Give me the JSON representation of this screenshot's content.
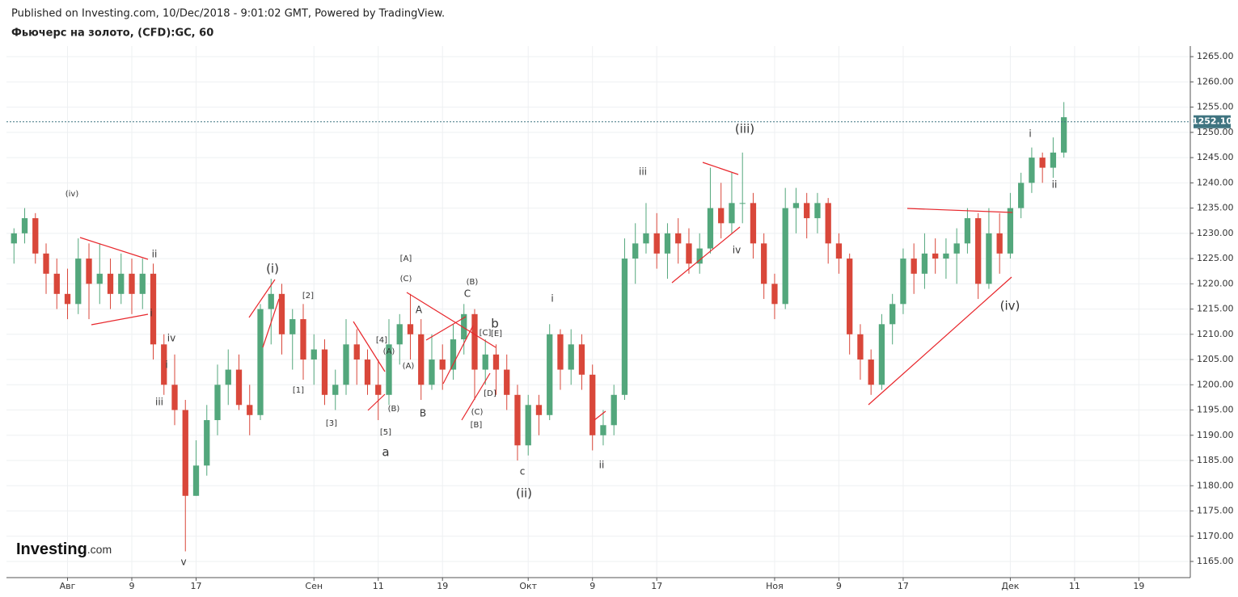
{
  "header": {
    "published": "Published on Investing.com, 10/Dec/2018 - 9:01:02 GMT, Powered by TradingView.",
    "instrument": "Фьючерс на золото, (CFD):GC, 60"
  },
  "logo": {
    "name": "Investing",
    "suffix": ".com"
  },
  "chart_data": {
    "type": "candlestick",
    "x": [
      -5,
      -4,
      -3,
      -2,
      -1,
      0,
      1,
      2,
      3,
      4,
      5,
      6,
      7,
      8,
      9,
      10,
      11,
      12,
      13,
      14,
      15,
      16,
      17,
      18,
      19,
      20,
      21,
      22,
      23,
      24,
      25,
      26,
      27,
      28,
      29,
      30,
      31,
      32,
      33,
      34,
      35,
      36,
      37,
      38,
      39,
      40,
      41,
      42,
      43,
      44,
      45,
      46,
      47,
      48,
      49,
      50,
      51,
      52,
      53,
      54,
      55,
      56,
      57,
      58,
      59,
      60,
      61,
      62,
      63,
      64,
      65,
      66,
      67,
      68,
      69,
      70,
      71,
      72,
      73,
      74,
      75,
      76,
      77,
      78,
      79,
      80,
      81,
      82,
      83,
      84,
      85,
      86,
      87,
      88,
      89,
      90,
      91,
      92,
      93
    ],
    "open": [
      1228,
      1230,
      1233,
      1226,
      1222,
      1218,
      1216,
      1225,
      1220,
      1222,
      1218,
      1222,
      1218,
      1222,
      1208,
      1200,
      1195,
      1178,
      1184,
      1193,
      1200,
      1203,
      1196,
      1194,
      1215,
      1218,
      1210,
      1213,
      1205,
      1207,
      1198,
      1200,
      1208,
      1205,
      1200,
      1198,
      1208,
      1212,
      1210,
      1200,
      1205,
      1203,
      1209,
      1214,
      1203,
      1206,
      1203,
      1198,
      1188,
      1196,
      1194,
      1210,
      1203,
      1208,
      1202,
      1190,
      1192,
      1198,
      1225,
      1228,
      1230,
      1226,
      1230,
      1228,
      1224,
      1227,
      1235,
      1232,
      1236,
      1236,
      1228,
      1220,
      1216,
      1235,
      1236,
      1233,
      1236,
      1228,
      1225,
      1210,
      1205,
      1200,
      1212,
      1216,
      1225,
      1222,
      1226,
      1225,
      1226,
      1228,
      1233,
      1220,
      1230,
      1226,
      1235,
      1240,
      1245,
      1243,
      1246
    ],
    "high": [
      1231,
      1235,
      1234,
      1228,
      1225,
      1223,
      1229,
      1228,
      1228,
      1225,
      1226,
      1225,
      1225,
      1224,
      1210,
      1206,
      1197,
      1189,
      1196,
      1204,
      1207,
      1206,
      1200,
      1216,
      1221,
      1220,
      1215,
      1216,
      1210,
      1209,
      1203,
      1213,
      1211,
      1207,
      1205,
      1213,
      1214,
      1218,
      1213,
      1210,
      1208,
      1212,
      1216,
      1215,
      1209,
      1208,
      1206,
      1200,
      1198,
      1198,
      1212,
      1211,
      1211,
      1210,
      1204,
      1195,
      1200,
      1229,
      1232,
      1236,
      1234,
      1232,
      1233,
      1231,
      1230,
      1243,
      1240,
      1242,
      1246,
      1238,
      1230,
      1222,
      1239,
      1239,
      1238,
      1238,
      1237,
      1230,
      1226,
      1212,
      1207,
      1214,
      1218,
      1227,
      1228,
      1230,
      1229,
      1229,
      1231,
      1235,
      1234,
      1235,
      1234,
      1238,
      1242,
      1247,
      1246,
      1249,
      1256
    ],
    "low": [
      1224,
      1228,
      1224,
      1218,
      1215,
      1213,
      1214,
      1213,
      1216,
      1215,
      1216,
      1214,
      1215,
      1205,
      1198,
      1192,
      1167,
      1178,
      1182,
      1190,
      1196,
      1195,
      1190,
      1193,
      1208,
      1206,
      1203,
      1201,
      1200,
      1196,
      1195,
      1198,
      1200,
      1198,
      1193,
      1196,
      1204,
      1205,
      1197,
      1199,
      1199,
      1201,
      1206,
      1197,
      1200,
      1198,
      1195,
      1185,
      1186,
      1190,
      1193,
      1199,
      1200,
      1199,
      1187,
      1188,
      1190,
      1197,
      1220,
      1226,
      1223,
      1221,
      1224,
      1222,
      1222,
      1226,
      1229,
      1230,
      1232,
      1225,
      1217,
      1213,
      1215,
      1230,
      1229,
      1230,
      1224,
      1222,
      1206,
      1201,
      1198,
      1199,
      1208,
      1214,
      1218,
      1219,
      1222,
      1221,
      1220,
      1226,
      1217,
      1219,
      1222,
      1225,
      1233,
      1238,
      1240,
      1241,
      1245
    ],
    "close": [
      1230,
      1233,
      1226,
      1222,
      1218,
      1216,
      1225,
      1220,
      1222,
      1218,
      1222,
      1218,
      1222,
      1208,
      1200,
      1195,
      1178,
      1184,
      1193,
      1200,
      1203,
      1196,
      1194,
      1215,
      1218,
      1210,
      1213,
      1205,
      1207,
      1198,
      1200,
      1208,
      1205,
      1200,
      1198,
      1208,
      1212,
      1210,
      1200,
      1205,
      1203,
      1209,
      1214,
      1203,
      1206,
      1203,
      1198,
      1188,
      1196,
      1194,
      1210,
      1203,
      1208,
      1202,
      1190,
      1192,
      1198,
      1225,
      1228,
      1230,
      1226,
      1230,
      1228,
      1224,
      1227,
      1235,
      1232,
      1236,
      1236,
      1228,
      1220,
      1216,
      1235,
      1236,
      1233,
      1236,
      1228,
      1225,
      1210,
      1205,
      1200,
      1212,
      1216,
      1225,
      1222,
      1226,
      1225,
      1226,
      1228,
      1233,
      1220,
      1230,
      1226,
      1235,
      1240,
      1245,
      1243,
      1246,
      1253
    ],
    "up_color": "#53a77c",
    "down_color": "#d9473a",
    "last_price": {
      "value": 1252.1,
      "label": "1252.10"
    },
    "xlim": [
      -5.7,
      104.8
    ],
    "xticks": [
      {
        "value": 0,
        "label": "Авг"
      },
      {
        "value": 6,
        "label": "9"
      },
      {
        "value": 12,
        "label": "17"
      },
      {
        "value": 23,
        "label": "Сен"
      },
      {
        "value": 29,
        "label": "11"
      },
      {
        "value": 35,
        "label": "19"
      },
      {
        "value": 43,
        "label": "Окт"
      },
      {
        "value": 49,
        "label": "9"
      },
      {
        "value": 55,
        "label": "17"
      },
      {
        "value": 66,
        "label": "Ноя"
      },
      {
        "value": 72,
        "label": "9"
      },
      {
        "value": 78,
        "label": "17"
      },
      {
        "value": 88,
        "label": "Дек"
      },
      {
        "value": 94,
        "label": "11"
      },
      {
        "value": 100,
        "label": "19"
      }
    ],
    "ylim": [
      1161.8,
      1267.1
    ],
    "yticks": [
      {
        "value": 1165,
        "label": "1165.00"
      },
      {
        "value": 1170,
        "label": "1170.00"
      },
      {
        "value": 1175,
        "label": "1175.00"
      },
      {
        "value": 1180,
        "label": "1180.00"
      },
      {
        "value": 1185,
        "label": "1185.00"
      },
      {
        "value": 1190,
        "label": "1190.00"
      },
      {
        "value": 1195,
        "label": "1195.00"
      },
      {
        "value": 1200,
        "label": "1200.00"
      },
      {
        "value": 1205,
        "label": "1205.00"
      },
      {
        "value": 1210,
        "label": "1210.00"
      },
      {
        "value": 1215,
        "label": "1215.00"
      },
      {
        "value": 1220,
        "label": "1220.00"
      },
      {
        "value": 1225,
        "label": "1225.00"
      },
      {
        "value": 1230,
        "label": "1230.00"
      },
      {
        "value": 1235,
        "label": "1235.00"
      },
      {
        "value": 1240,
        "label": "1240.00"
      },
      {
        "value": 1245,
        "label": "1245.00"
      },
      {
        "value": 1250,
        "label": "1250.00"
      },
      {
        "value": 1255,
        "label": "1255.00"
      },
      {
        "value": 1260,
        "label": "1260.00"
      },
      {
        "value": 1265,
        "label": "1265.00"
      }
    ],
    "grid": true,
    "annotations": [
      "(iv)",
      "ii",
      "i",
      "iv",
      "i",
      "iii",
      "v",
      "(i)",
      "[2]",
      "[1]",
      "[3]",
      "[4]",
      "(A)",
      "(B)",
      "[5]",
      "a",
      "[A]",
      "(C)",
      "(A)",
      "A",
      "B",
      "(B)",
      "C",
      "b",
      "[C]",
      "[E]",
      "[D]",
      "(C)",
      "[B]",
      "c",
      "(ii)",
      "i",
      "ii",
      "iii",
      "(iii)",
      "iv",
      "(iv)",
      "i",
      "ii"
    ]
  }
}
